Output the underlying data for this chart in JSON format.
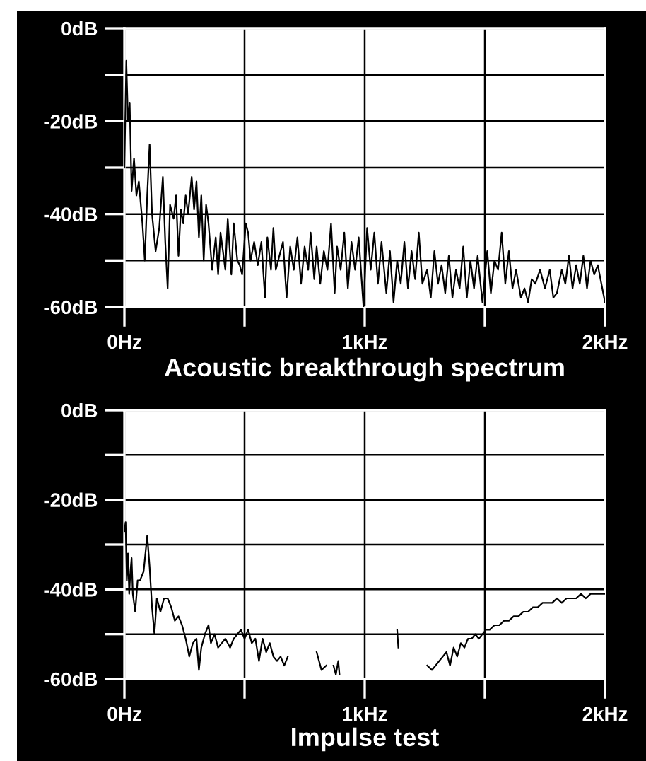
{
  "chart_data": [
    {
      "type": "line",
      "title": "Acoustic breakthrough spectrum",
      "xlim": [
        0,
        2
      ],
      "ylim": [
        -60,
        0
      ],
      "xticks": [
        {
          "value": 0,
          "label": "0Hz"
        },
        {
          "value": 0.5,
          "label": null
        },
        {
          "value": 1,
          "label": "1kHz"
        },
        {
          "value": 1.5,
          "label": null
        },
        {
          "value": 2,
          "label": "2kHz"
        }
      ],
      "yticks": [
        {
          "value": 0,
          "label": "0dB"
        },
        {
          "value": -10,
          "label": null
        },
        {
          "value": -20,
          "label": "-20dB"
        },
        {
          "value": -30,
          "label": null
        },
        {
          "value": -40,
          "label": "-40dB"
        },
        {
          "value": -50,
          "label": null
        },
        {
          "value": -60,
          "label": "-60dB"
        }
      ],
      "grid": true,
      "series": [
        {
          "color": "#000000",
          "x": [
            0,
            0.008,
            0.015,
            0.022,
            0.03,
            0.04,
            0.05,
            0.06,
            0.075,
            0.085,
            0.095,
            0.105,
            0.115,
            0.13,
            0.145,
            0.16,
            0.17,
            0.18,
            0.19,
            0.205,
            0.215,
            0.225,
            0.235,
            0.245,
            0.255,
            0.265,
            0.28,
            0.29,
            0.3,
            0.31,
            0.32,
            0.33,
            0.34,
            0.35,
            0.365,
            0.38,
            0.39,
            0.4,
            0.42,
            0.43,
            0.445,
            0.455,
            0.47,
            0.48,
            0.49,
            0.505,
            0.515,
            0.525,
            0.54,
            0.555,
            0.57,
            0.585,
            0.595,
            0.61,
            0.62,
            0.63,
            0.645,
            0.66,
            0.675,
            0.69,
            0.705,
            0.72,
            0.735,
            0.75,
            0.765,
            0.775,
            0.79,
            0.8,
            0.815,
            0.83,
            0.845,
            0.86,
            0.875,
            0.885,
            0.9,
            0.915,
            0.93,
            0.945,
            0.96,
            0.975,
            0.995,
            1.01,
            1.025,
            1.04,
            1.055,
            1.07,
            1.09,
            1.105,
            1.12,
            1.135,
            1.15,
            1.165,
            1.18,
            1.195,
            1.21,
            1.225,
            1.24,
            1.26,
            1.275,
            1.29,
            1.305,
            1.32,
            1.335,
            1.35,
            1.365,
            1.38,
            1.395,
            1.41,
            1.425,
            1.44,
            1.455,
            1.47,
            1.49,
            1.51,
            1.525,
            1.54,
            1.555,
            1.57,
            1.585,
            1.6,
            1.615,
            1.63,
            1.65,
            1.665,
            1.68,
            1.695,
            1.71,
            1.73,
            1.75,
            1.77,
            1.785,
            1.8,
            1.82,
            1.835,
            1.85,
            1.865,
            1.88,
            1.895,
            1.91,
            1.925,
            1.94,
            1.955,
            1.97,
            1.985,
            2
          ],
          "values": [
            -30,
            -7,
            -20,
            -16,
            -35,
            -28,
            -36,
            -33,
            -42,
            -50,
            -36,
            -25,
            -40,
            -48,
            -43,
            -32,
            -46,
            -56,
            -38,
            -41,
            -36,
            -49,
            -39,
            -42,
            -36,
            -40,
            -32,
            -39,
            -33,
            -45,
            -36,
            -50,
            -38,
            -42,
            -52,
            -45,
            -53,
            -44,
            -52,
            -41,
            -53,
            -42,
            -50,
            -51,
            -53,
            -42,
            -44,
            -50,
            -46,
            -51,
            -46,
            -58,
            -45,
            -52,
            -43,
            -52,
            -49,
            -46,
            -58,
            -47,
            -52,
            -45,
            -55,
            -47,
            -52,
            -44,
            -54,
            -47,
            -55,
            -48,
            -52,
            -42,
            -57,
            -47,
            -52,
            -44,
            -56,
            -46,
            -52,
            -45,
            -60,
            -43,
            -52,
            -44,
            -55,
            -46,
            -57,
            -48,
            -59,
            -50,
            -55,
            -46,
            -56,
            -48,
            -54,
            -44,
            -55,
            -52,
            -58,
            -48,
            -55,
            -51,
            -57,
            -49,
            -58,
            -52,
            -56,
            -47,
            -58,
            -50,
            -56,
            -49,
            -59,
            -48,
            -57,
            -50,
            -52,
            -44,
            -55,
            -48,
            -56,
            -52,
            -58,
            -56,
            -59,
            -54,
            -55,
            -52,
            -56,
            -52,
            -58,
            -57,
            -52,
            -55,
            -49,
            -56,
            -51,
            -55,
            -49,
            -56,
            -50,
            -53,
            -51,
            -55,
            -59
          ]
        }
      ]
    },
    {
      "type": "line",
      "title": "Impulse test",
      "xlim": [
        0,
        2
      ],
      "ylim": [
        -60,
        0
      ],
      "xticks": [
        {
          "value": 0,
          "label": "0Hz"
        },
        {
          "value": 0.5,
          "label": null
        },
        {
          "value": 1,
          "label": "1kHz"
        },
        {
          "value": 1.5,
          "label": null
        },
        {
          "value": 2,
          "label": "2kHz"
        }
      ],
      "yticks": [
        {
          "value": 0,
          "label": "0dB"
        },
        {
          "value": -10,
          "label": null
        },
        {
          "value": -20,
          "label": "-20dB"
        },
        {
          "value": -30,
          "label": null
        },
        {
          "value": -40,
          "label": "-40dB"
        },
        {
          "value": -50,
          "label": null
        },
        {
          "value": -60,
          "label": "-60dB"
        }
      ],
      "grid": true,
      "series": [
        {
          "color": "#000000",
          "x": [
            0,
            0.005,
            0.01,
            0.015,
            0.02,
            0.025,
            0.03,
            0.035,
            0.045,
            0.055,
            0.065,
            0.08,
            0.095,
            0.105,
            0.115,
            0.125,
            0.135,
            0.15,
            0.165,
            0.18,
            0.195,
            0.21,
            0.225,
            0.24,
            0.255,
            0.27,
            0.285,
            0.3,
            0.31,
            0.32,
            0.335,
            0.35,
            0.36,
            0.375,
            0.39,
            0.405,
            0.42,
            0.44,
            0.455,
            0.47,
            0.485,
            0.5,
            0.515,
            0.53,
            0.545,
            0.56,
            0.575,
            0.59,
            0.605,
            0.62,
            0.635,
            0.65,
            0.665,
            0.68,
            0.69,
            0.8,
            0.82,
            0.84,
            0.85,
            0.87,
            0.88,
            0.89,
            0.895,
            0.9,
            1.135,
            1.14,
            1.145,
            1.26,
            1.28,
            1.295,
            1.31,
            1.325,
            1.34,
            1.355,
            1.37,
            1.385,
            1.4,
            1.415,
            1.43,
            1.445,
            1.46,
            1.475,
            1.49,
            1.505,
            1.52,
            1.54,
            1.56,
            1.58,
            1.6,
            1.62,
            1.64,
            1.66,
            1.68,
            1.7,
            1.72,
            1.74,
            1.76,
            1.78,
            1.8,
            1.82,
            1.84,
            1.86,
            1.88,
            1.9,
            1.92,
            1.94,
            1.96,
            1.98,
            2
          ],
          "values": [
            -27,
            -25,
            -38,
            -32,
            -41,
            -36,
            -33,
            -41,
            -45,
            -38,
            -38,
            -36,
            -28,
            -35,
            -44,
            -50,
            -42,
            -45,
            -42,
            -42,
            -44,
            -47,
            -46,
            -48,
            -51,
            -55,
            -52,
            -51,
            -58,
            -53,
            -50,
            -48,
            -52,
            -50,
            -53,
            -52,
            -51,
            -53,
            -51,
            -50,
            -49,
            -51,
            -49,
            -52,
            -51,
            -56,
            -51,
            -54,
            -52,
            -55,
            -56,
            -55,
            -57,
            -55,
            null,
            -54,
            -58,
            -57,
            null,
            -57,
            -59,
            -56,
            -59,
            null,
            -49,
            -53,
            null,
            -57,
            -58,
            -57,
            -56,
            -55,
            -54,
            -57,
            -53,
            -55,
            -52,
            -53,
            -51,
            -51,
            -50,
            -51,
            -50,
            -49,
            -49,
            -48,
            -48,
            -47,
            -47,
            -46,
            -46,
            -45,
            -45,
            -44,
            -44,
            -43,
            -43,
            -43,
            -42,
            -43,
            -42,
            -42,
            -42,
            -41,
            -42,
            -41,
            -41,
            -41,
            -41
          ]
        }
      ]
    }
  ]
}
